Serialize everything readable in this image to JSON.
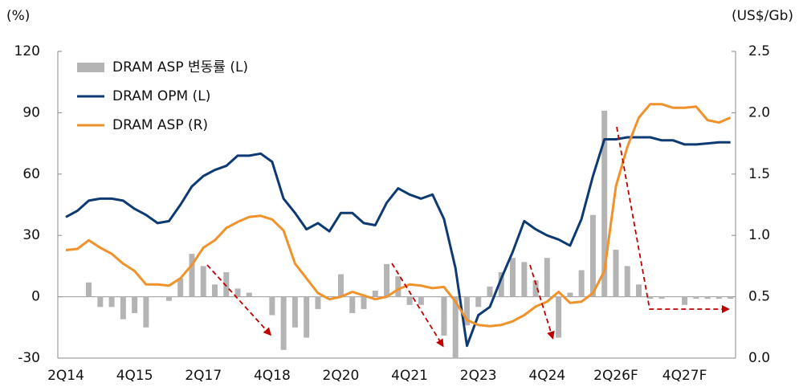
{
  "chart_data": {
    "type": "combo",
    "y_label": "(%)",
    "y2_label": "(US$/Gb)",
    "categories": [
      "2Q14",
      null,
      null,
      null,
      null,
      null,
      "4Q15",
      null,
      null,
      null,
      null,
      null,
      "2Q17",
      null,
      null,
      null,
      null,
      null,
      "4Q18",
      null,
      null,
      null,
      null,
      null,
      "2Q20",
      null,
      null,
      null,
      null,
      null,
      "4Q21",
      null,
      null,
      null,
      null,
      null,
      "2Q23",
      null,
      null,
      null,
      null,
      null,
      "4Q24",
      null,
      null,
      null,
      null,
      null,
      "2Q26F",
      null,
      null,
      null,
      null,
      null,
      "4Q27F",
      null,
      null,
      null,
      null
    ],
    "series": [
      {
        "name": "DRAM ASP 변동률 (L)",
        "type": "bar",
        "color": "#b4b4b4",
        "values": [
          0,
          0,
          7,
          -5,
          -5,
          -11,
          -8,
          -15,
          0,
          -2,
          9,
          21,
          15,
          6,
          12,
          4,
          2,
          0,
          -9,
          -26,
          -15,
          -20,
          -6,
          0,
          11,
          -8,
          -6,
          3,
          16,
          10,
          -4,
          -4,
          0,
          -19,
          -30,
          -14,
          -5,
          5,
          12,
          19,
          17,
          8,
          19,
          -20,
          2,
          13,
          40,
          91,
          23,
          15,
          6,
          -1,
          -1,
          0,
          -4,
          -1,
          -1,
          -1,
          -1
        ]
      },
      {
        "name": "DRAM OPM (L)",
        "type": "line",
        "color": "#0d3a73",
        "values": [
          39,
          42,
          47,
          48,
          48,
          47,
          43,
          40,
          36,
          37,
          45,
          54,
          59,
          62,
          64,
          69,
          69,
          70,
          66,
          48,
          41,
          33,
          36,
          32,
          41,
          41,
          36,
          35,
          46,
          53,
          50,
          48,
          50,
          38,
          14,
          -24,
          -9,
          -5,
          9,
          22,
          37,
          33,
          30,
          28,
          25,
          38,
          59,
          77,
          77,
          78,
          78,
          78,
          76.5,
          76.5,
          74.5,
          74.5,
          75,
          75.5,
          75.5
        ]
      },
      {
        "name": "DRAM ASP (R)",
        "type": "line",
        "color": "#f0922b",
        "axis": "y2",
        "values": [
          0.88,
          0.89,
          0.96,
          0.9,
          0.85,
          0.77,
          0.71,
          0.6,
          0.6,
          0.59,
          0.65,
          0.76,
          0.9,
          0.96,
          1.06,
          1.11,
          1.15,
          1.16,
          1.13,
          1.04,
          0.77,
          0.65,
          0.53,
          0.48,
          0.5,
          0.54,
          0.51,
          0.48,
          0.5,
          0.56,
          0.6,
          0.59,
          0.57,
          0.58,
          0.46,
          0.31,
          0.27,
          0.26,
          0.27,
          0.3,
          0.35,
          0.42,
          0.46,
          0.54,
          0.45,
          0.46,
          0.53,
          0.71,
          1.4,
          1.72,
          1.96,
          2.07,
          2.07,
          2.04,
          2.04,
          2.05,
          1.94,
          1.92,
          1.96
        ]
      }
    ],
    "ylim": [
      -30,
      120
    ],
    "yticks": [
      -30,
      0,
      30,
      60,
      90,
      120
    ],
    "negative_tick_color": "#e60012",
    "y2lim": [
      0,
      2.5
    ],
    "y2ticks": [
      {
        "value": 0,
        "label": "0.0"
      },
      0.5,
      {
        "value": 1,
        "label": "1.0"
      },
      1.5,
      {
        "value": 2,
        "label": "2.0"
      },
      2.5
    ],
    "legend": "upper left"
  }
}
